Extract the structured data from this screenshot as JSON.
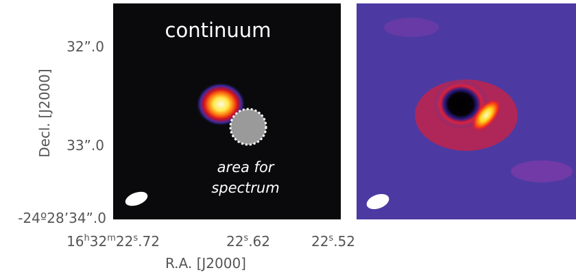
{
  "left_panel": {
    "title": "continuum",
    "annotation": [
      "area for",
      "spectrum"
    ]
  },
  "y_axis": {
    "label": "Decl. [J2000]",
    "ticks": [
      "32”.0",
      "33”.0",
      "-24º28’34”.0"
    ]
  },
  "x_axis": {
    "label": "R.A. [J2000]",
    "ticks": [
      {
        "segments": [
          "16",
          "h",
          "32",
          "m",
          "22",
          "s",
          ".72"
        ]
      },
      {
        "segments": [
          "22",
          "s",
          ".62"
        ]
      },
      {
        "segments": [
          "22",
          "s",
          ".52"
        ]
      }
    ]
  }
}
